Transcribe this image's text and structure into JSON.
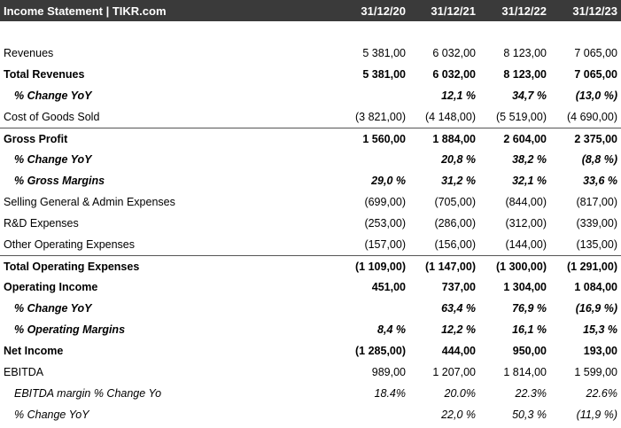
{
  "header": {
    "title": "Income Statement | TIKR.com",
    "years": [
      "31/12/20",
      "31/12/21",
      "31/12/22",
      "31/12/23"
    ]
  },
  "rows": [
    {
      "label": "Revenues",
      "values": [
        "5 381,00",
        "6 032,00",
        "8 123,00",
        "7 065,00"
      ]
    },
    {
      "label": "Total Revenues",
      "values": [
        "5 381,00",
        "6 032,00",
        "8 123,00",
        "7 065,00"
      ]
    },
    {
      "label": "% Change YoY",
      "values": [
        "",
        "12,1 %",
        "34,7 %",
        "(13,0 %)"
      ]
    },
    {
      "label": "Cost of Goods Sold",
      "values": [
        "(3 821,00)",
        "(4 148,00)",
        "(5 519,00)",
        "(4 690,00)"
      ]
    },
    {
      "label": "Gross Profit",
      "values": [
        "1 560,00",
        "1 884,00",
        "2 604,00",
        "2 375,00"
      ]
    },
    {
      "label": "% Change YoY",
      "values": [
        "",
        "20,8 %",
        "38,2 %",
        "(8,8 %)"
      ]
    },
    {
      "label": "% Gross Margins",
      "values": [
        "29,0 %",
        "31,2 %",
        "32,1 %",
        "33,6 %"
      ]
    },
    {
      "label": "Selling General & Admin Expenses",
      "values": [
        "(699,00)",
        "(705,00)",
        "(844,00)",
        "(817,00)"
      ]
    },
    {
      "label": "R&D Expenses",
      "values": [
        "(253,00)",
        "(286,00)",
        "(312,00)",
        "(339,00)"
      ]
    },
    {
      "label": "Other Operating Expenses",
      "values": [
        "(157,00)",
        "(156,00)",
        "(144,00)",
        "(135,00)"
      ]
    },
    {
      "label": "Total Operating Expenses",
      "values": [
        "(1 109,00)",
        "(1 147,00)",
        "(1 300,00)",
        "(1 291,00)"
      ]
    },
    {
      "label": "Operating Income",
      "values": [
        "451,00",
        "737,00",
        "1 304,00",
        "1 084,00"
      ]
    },
    {
      "label": "% Change YoY",
      "values": [
        "",
        "63,4 %",
        "76,9 %",
        "(16,9 %)"
      ]
    },
    {
      "label": "% Operating Margins",
      "values": [
        "8,4 %",
        "12,2 %",
        "16,1 %",
        "15,3 %"
      ]
    },
    {
      "label": "Net Income",
      "values": [
        "(1 285,00)",
        "444,00",
        "950,00",
        "193,00"
      ]
    },
    {
      "label": "EBITDA",
      "values": [
        "989,00",
        "1 207,00",
        "1 814,00",
        "1 599,00"
      ]
    },
    {
      "label": "EBITDA margin % Change Yo",
      "values": [
        "18.4%",
        "20.0%",
        "22.3%",
        "22.6%"
      ]
    },
    {
      "label": "% Change YoY",
      "values": [
        "",
        "22,0 %",
        "50,3 %",
        "(11,9 %)"
      ]
    }
  ]
}
